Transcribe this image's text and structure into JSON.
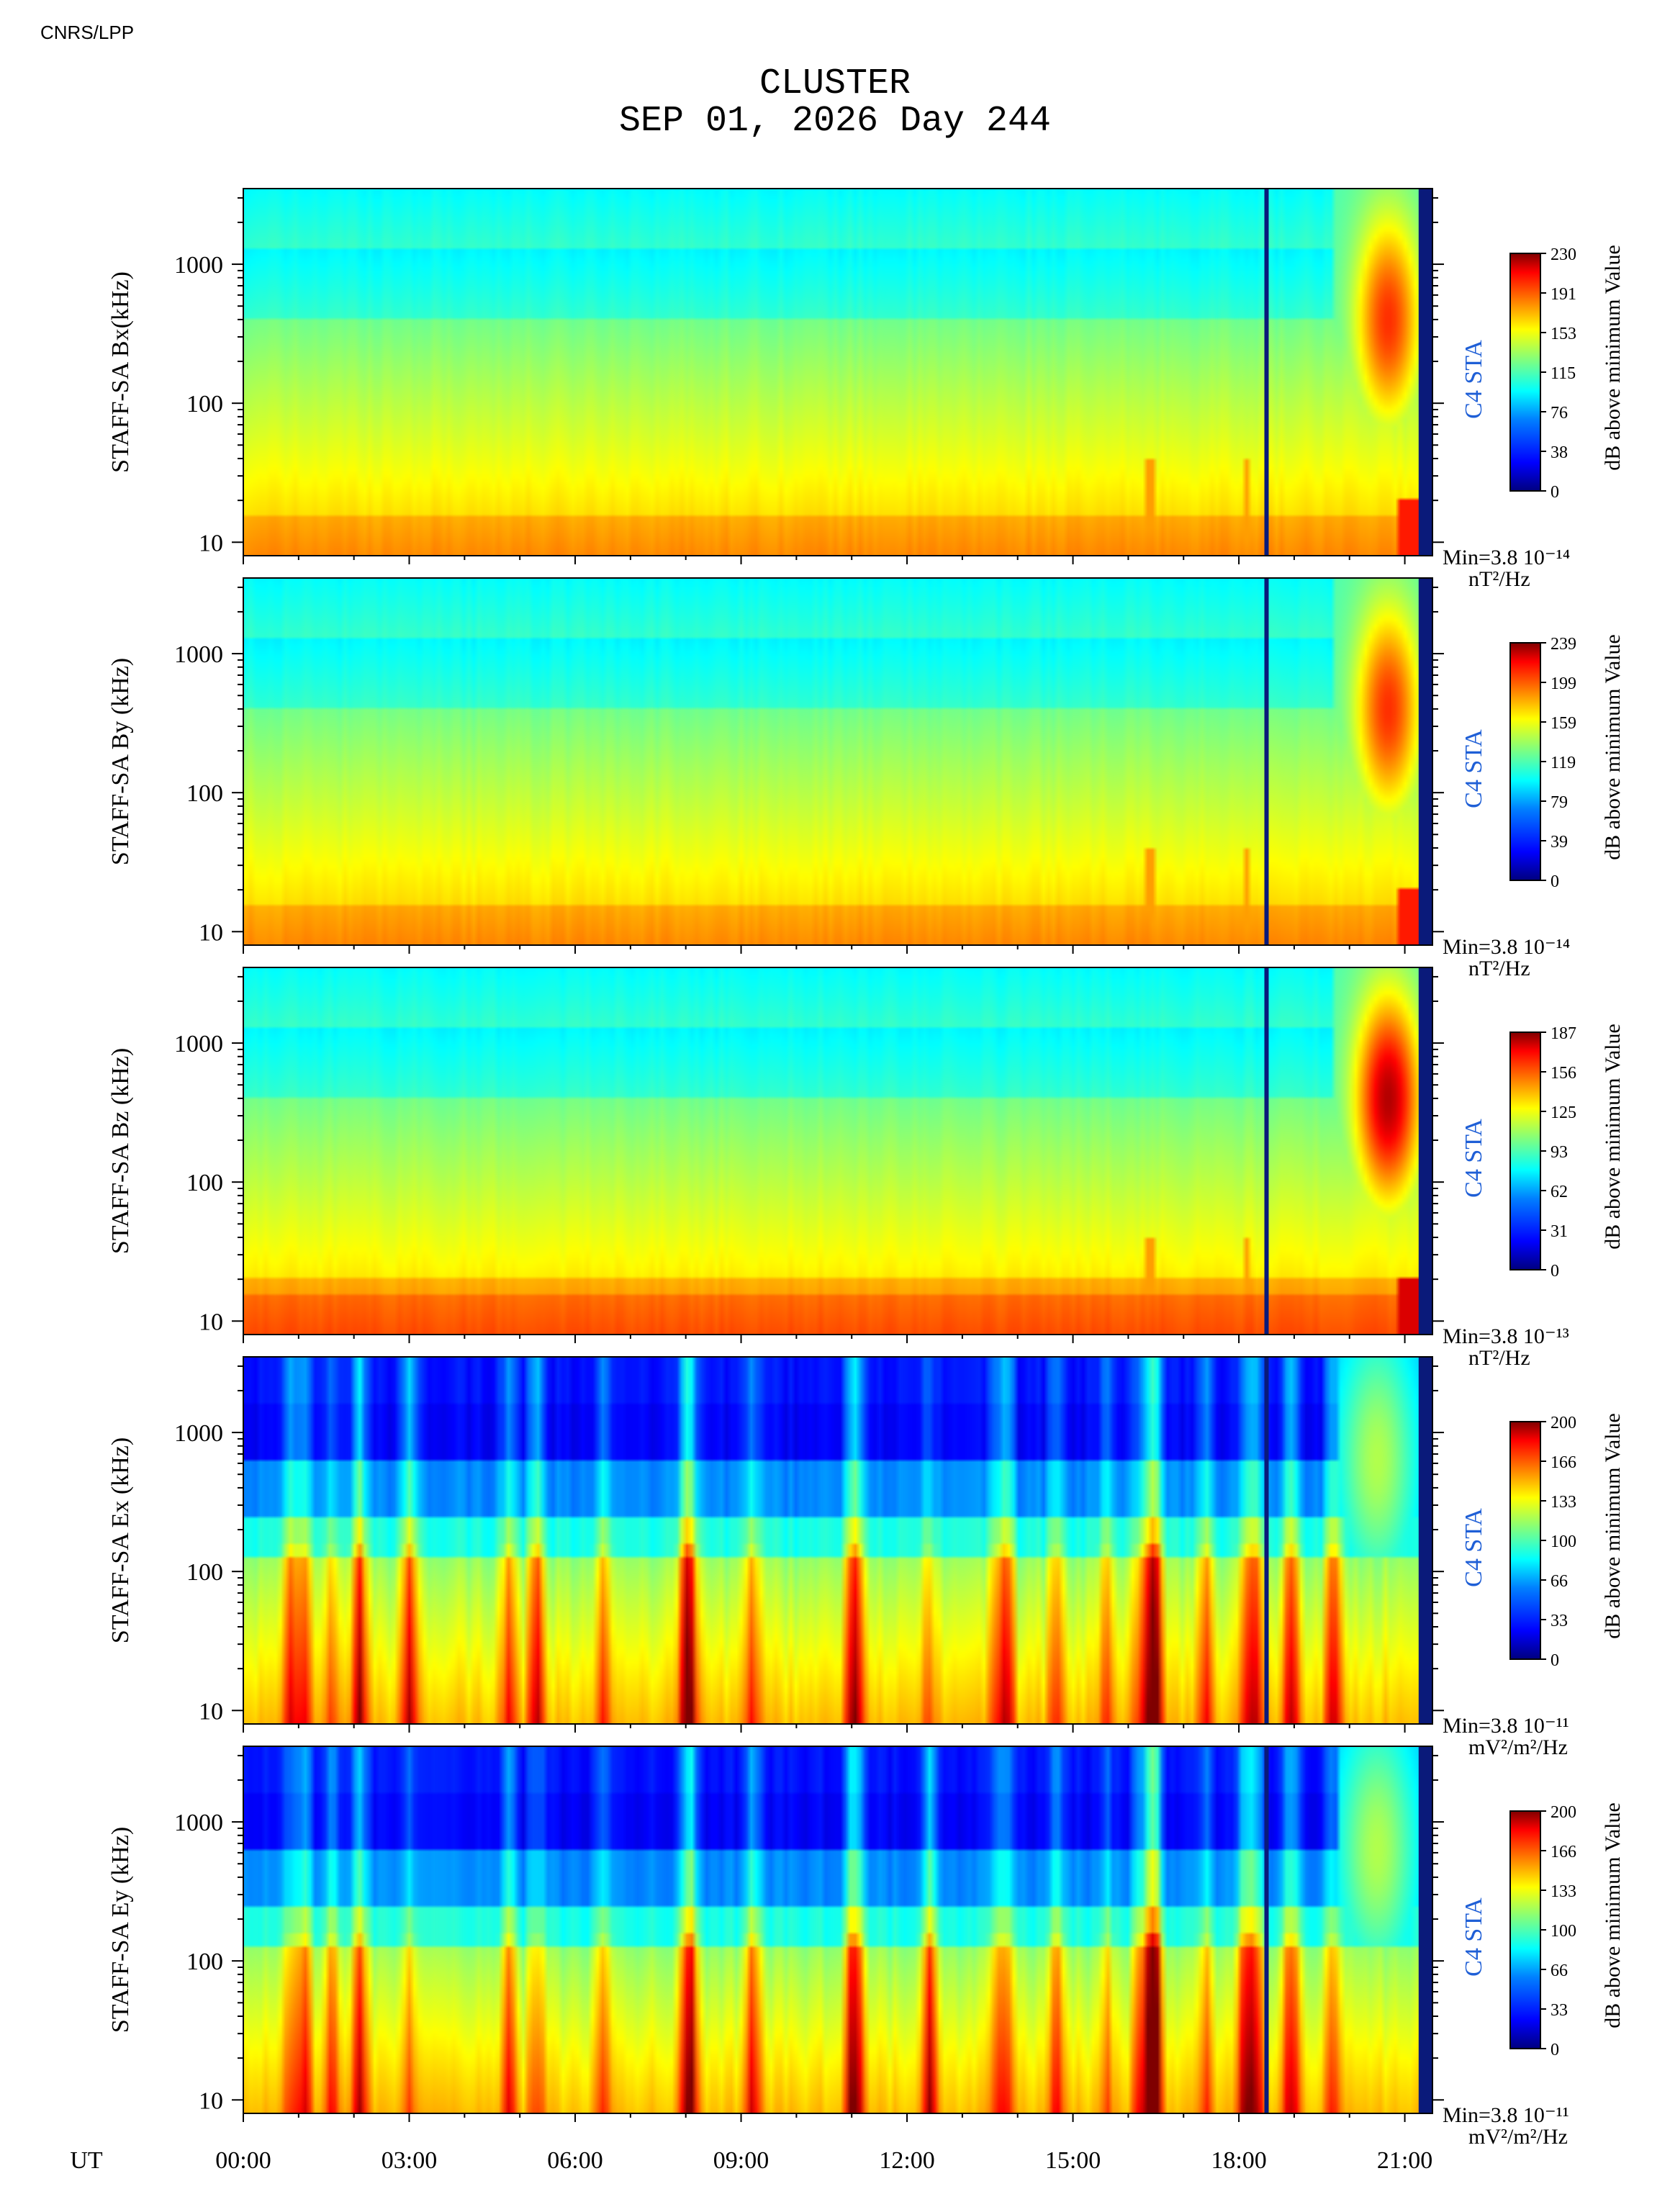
{
  "header": {
    "credit": "CNRS/LPP",
    "title": "CLUSTER",
    "subtitle": "SEP 01, 2026 Day 244"
  },
  "colors": {
    "marker_line": "#0a1a7a",
    "spacecraft_label": "#1f5fd6",
    "colormap": [
      "#00007f",
      "#0000ff",
      "#007fff",
      "#00ffff",
      "#7fff7f",
      "#ffff00",
      "#ff7f00",
      "#ff0000",
      "#7f0000"
    ]
  },
  "chart_data": {
    "type": "heatmap",
    "x_axis_label": "UT",
    "x_ticks": [
      "00:00",
      "03:00",
      "06:00",
      "09:00",
      "12:00",
      "15:00",
      "18:00",
      "21:00"
    ],
    "x_range_hours": [
      0,
      21.5
    ],
    "y_scale": "log",
    "y_ticks": [
      10,
      100,
      1000
    ],
    "y_range_khz": [
      8,
      3500
    ],
    "vertical_marker_ut_hours": 18.5,
    "panels": [
      {
        "ylabel": "STAFF-SA Bx(kHz)",
        "spacecraft": "C4 STA",
        "colorbar_ticks": [
          0,
          38,
          76,
          115,
          153,
          191,
          230
        ],
        "colorbar_label": "dB above minimum Value",
        "min_text": "Min=3.8 10⁻¹⁴",
        "unit_text": "nT²/Hz",
        "signal": "magnetic"
      },
      {
        "ylabel": "STAFF-SA By (kHz)",
        "spacecraft": "C4 STA",
        "colorbar_ticks": [
          0,
          39,
          79,
          119,
          159,
          199,
          239
        ],
        "colorbar_label": "dB above minimum Value",
        "min_text": "Min=3.8 10⁻¹⁴",
        "unit_text": "nT²/Hz",
        "signal": "magnetic"
      },
      {
        "ylabel": "STAFF-SA Bz (kHz)",
        "spacecraft": "C4 STA",
        "colorbar_ticks": [
          0,
          31,
          62,
          93,
          125,
          156,
          187
        ],
        "colorbar_label": "dB above minimum Value",
        "min_text": "Min=3.8 10⁻¹³",
        "unit_text": "nT²/Hz",
        "signal": "magnetic-strong"
      },
      {
        "ylabel": "STAFF-SA Ex (kHz)",
        "spacecraft": "C4 STA",
        "colorbar_ticks": [
          0,
          33,
          66,
          100,
          133,
          166,
          200
        ],
        "colorbar_label": "dB above minimum Value",
        "min_text": "Min=3.8 10⁻¹¹",
        "unit_text": "mV²/m²/Hz",
        "signal": "electric"
      },
      {
        "ylabel": "STAFF-SA Ey (kHz)",
        "spacecraft": "C4 STA",
        "colorbar_ticks": [
          0,
          33,
          66,
          100,
          133,
          166,
          200
        ],
        "colorbar_label": "dB above minimum Value",
        "min_text": "Min=3.8 10⁻¹¹",
        "unit_text": "mV²/m²/Hz",
        "signal": "electric"
      }
    ]
  }
}
